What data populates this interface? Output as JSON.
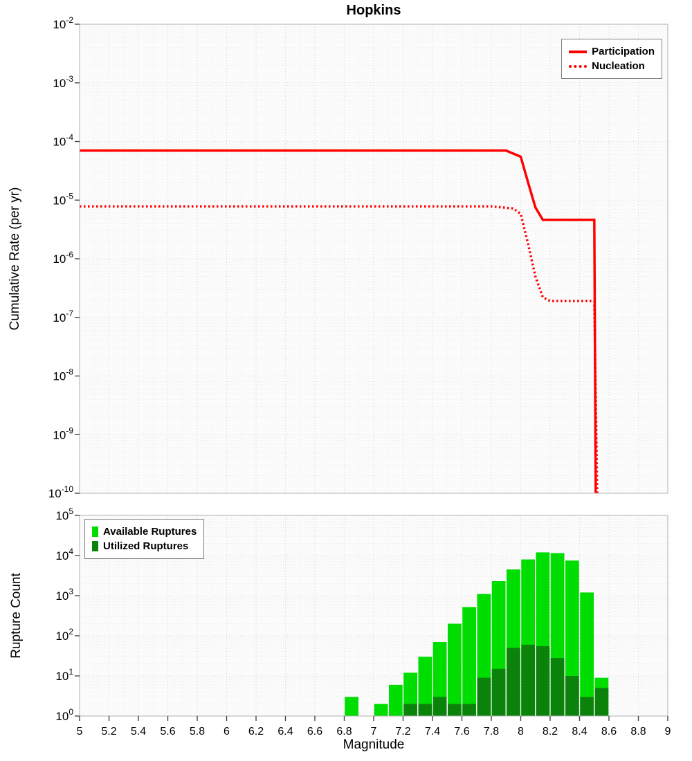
{
  "chart_data": [
    {
      "type": "line",
      "title": "Hopkins",
      "xlabel": "",
      "ylabel": "Cumulative Rate (per yr)",
      "xlim": [
        5,
        9
      ],
      "ylog": true,
      "ylim_exp": [
        -10,
        -2
      ],
      "y_tick_base": "10",
      "y_tick_exponents": [
        -2,
        -3,
        -4,
        -5,
        -6,
        -7,
        -8,
        -9,
        -10
      ],
      "grid": true,
      "legend": {
        "position": "top-right",
        "entries": [
          {
            "label": "Participation",
            "marker": "line-solid",
            "color": "#ff0000"
          },
          {
            "label": "Nucleation",
            "marker": "line-dotted",
            "color": "#ff0000"
          }
        ]
      },
      "series": [
        {
          "name": "Participation",
          "style": "solid",
          "color": "#ff0000",
          "points": [
            [
              5.0,
              7e-05
            ],
            [
              7.9,
              7e-05
            ],
            [
              8.0,
              5.5e-05
            ],
            [
              8.05,
              2e-05
            ],
            [
              8.1,
              7.5e-06
            ],
            [
              8.15,
              4.6e-06
            ],
            [
              8.5,
              4.6e-06
            ],
            [
              8.51,
              1e-10
            ]
          ]
        },
        {
          "name": "Nucleation",
          "style": "dotted",
          "color": "#ff0000",
          "points": [
            [
              5.0,
              7.8e-06
            ],
            [
              7.8,
              7.8e-06
            ],
            [
              7.95,
              7.2e-06
            ],
            [
              8.0,
              5.8e-06
            ],
            [
              8.05,
              1.8e-06
            ],
            [
              8.1,
              5e-07
            ],
            [
              8.15,
              2.2e-07
            ],
            [
              8.2,
              1.9e-07
            ],
            [
              8.5,
              1.9e-07
            ],
            [
              8.52,
              1e-10
            ]
          ]
        }
      ]
    },
    {
      "type": "bar",
      "title": "",
      "xlabel": "Magnitude",
      "ylabel": "Rupture Count",
      "xlim": [
        5,
        9
      ],
      "ylog": true,
      "ylim_exp": [
        0,
        5
      ],
      "y_tick_base": "10",
      "y_tick_exponents": [
        5,
        4,
        3,
        2,
        1,
        0
      ],
      "x_ticks": [
        "5",
        "5.2",
        "5.4",
        "5.6",
        "5.8",
        "6",
        "6.2",
        "6.4",
        "6.6",
        "6.8",
        "7",
        "7.2",
        "7.4",
        "7.6",
        "7.8",
        "8",
        "8.2",
        "8.4",
        "8.6",
        "8.8",
        "9"
      ],
      "bar_width": 0.1,
      "grid": true,
      "legend": {
        "position": "top-left",
        "entries": [
          {
            "label": "Available Ruptures",
            "marker": "square",
            "color": "#00dd00"
          },
          {
            "label": "Utilized Ruptures",
            "marker": "square",
            "color": "#0b830b"
          }
        ]
      },
      "series": [
        {
          "name": "Available Ruptures",
          "color": "#00dd00",
          "bars": [
            [
              6.85,
              3
            ],
            [
              7.05,
              2
            ],
            [
              7.15,
              6
            ],
            [
              7.25,
              12
            ],
            [
              7.35,
              30
            ],
            [
              7.45,
              70
            ],
            [
              7.55,
              200
            ],
            [
              7.65,
              520
            ],
            [
              7.75,
              1100
            ],
            [
              7.85,
              2300
            ],
            [
              7.95,
              4500
            ],
            [
              8.05,
              8000
            ],
            [
              8.15,
              12000
            ],
            [
              8.25,
              11500
            ],
            [
              8.35,
              7500
            ],
            [
              8.45,
              1200
            ],
            [
              8.55,
              9
            ]
          ]
        },
        {
          "name": "Utilized Ruptures",
          "color": "#0b830b",
          "bars": [
            [
              7.25,
              2
            ],
            [
              7.35,
              2
            ],
            [
              7.45,
              3
            ],
            [
              7.55,
              2
            ],
            [
              7.65,
              2
            ],
            [
              7.75,
              9
            ],
            [
              7.85,
              15
            ],
            [
              7.95,
              50
            ],
            [
              8.05,
              60
            ],
            [
              8.15,
              55
            ],
            [
              8.25,
              28
            ],
            [
              8.35,
              10
            ],
            [
              8.45,
              3
            ],
            [
              8.55,
              5
            ]
          ]
        }
      ]
    }
  ]
}
